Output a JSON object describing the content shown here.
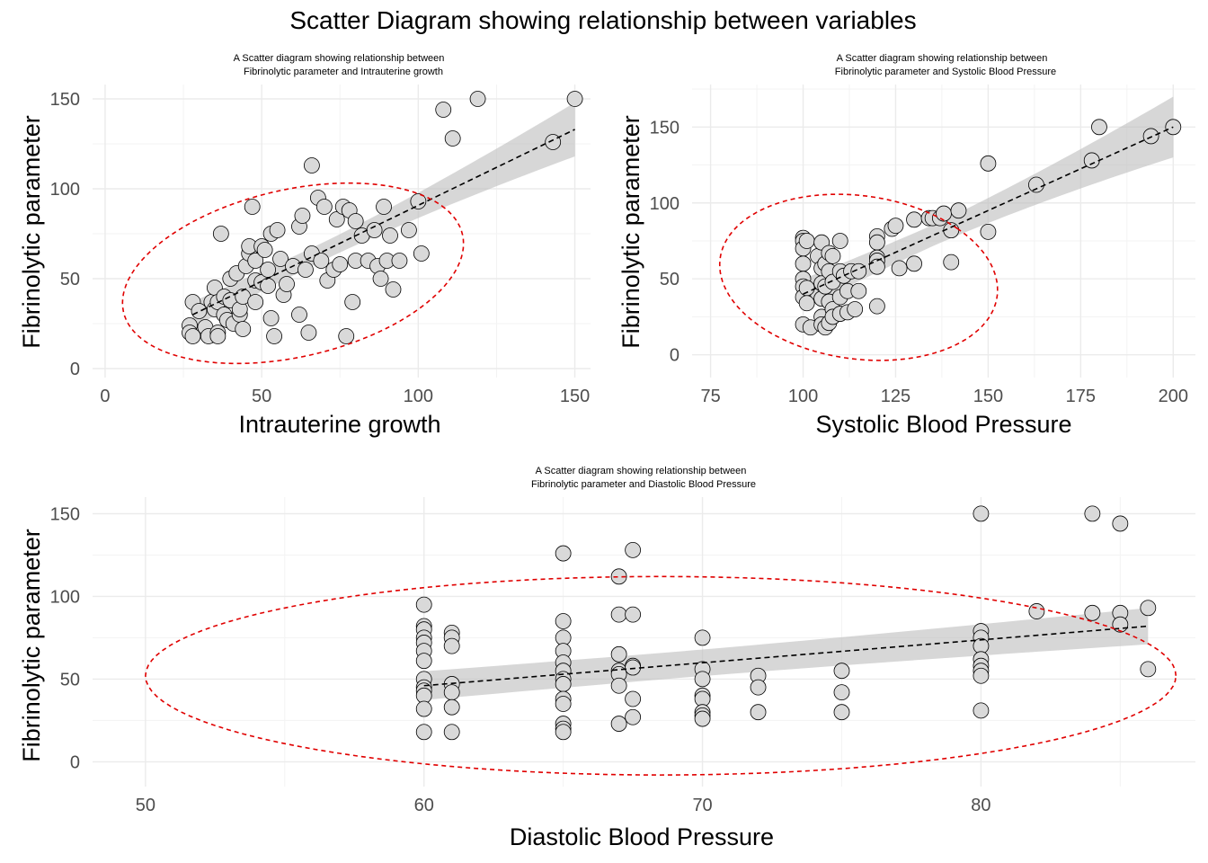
{
  "figure": {
    "title": "Scatter Diagram showing relationship between variables"
  },
  "chart_data": [
    {
      "type": "scatter",
      "title_line1": "A Scatter diagram showing relationship between",
      "title_line2": "Fibrinolytic parameter and Intrauterine growth",
      "xlabel": "Intrauterine growth",
      "ylabel": "Fibrinolytic parameter",
      "xlim": [
        -4,
        155
      ],
      "ylim": [
        -5,
        158
      ],
      "xticks": [
        0,
        50,
        100,
        150
      ],
      "yticks": [
        0,
        50,
        100,
        150
      ],
      "grid": true,
      "fit": {
        "x": [
          28,
          150
        ],
        "y": [
          30,
          133
        ],
        "ci_half_width": [
          5,
          15
        ]
      },
      "ellipse": {
        "cx": 60,
        "cy": 53,
        "rx": 60,
        "ry": 43,
        "angle_deg": 36
      },
      "points": [
        [
          28,
          37
        ],
        [
          27,
          24
        ],
        [
          27,
          20
        ],
        [
          28,
          18
        ],
        [
          30,
          32
        ],
        [
          32,
          23
        ],
        [
          33,
          18
        ],
        [
          34,
          37
        ],
        [
          35,
          33
        ],
        [
          35,
          45
        ],
        [
          36,
          20
        ],
        [
          36,
          18
        ],
        [
          37,
          75
        ],
        [
          36,
          37
        ],
        [
          38,
          30
        ],
        [
          38,
          40
        ],
        [
          39,
          27
        ],
        [
          40,
          38
        ],
        [
          40,
          50
        ],
        [
          41,
          25
        ],
        [
          42,
          53
        ],
        [
          43,
          30
        ],
        [
          43,
          33
        ],
        [
          44,
          22
        ],
        [
          44,
          40
        ],
        [
          45,
          57
        ],
        [
          46,
          64
        ],
        [
          46,
          68
        ],
        [
          47,
          90
        ],
        [
          48,
          60
        ],
        [
          48,
          49
        ],
        [
          48,
          37
        ],
        [
          50,
          68
        ],
        [
          50,
          48
        ],
        [
          51,
          66
        ],
        [
          52,
          55
        ],
        [
          52,
          46
        ],
        [
          53,
          28
        ],
        [
          53,
          75
        ],
        [
          54,
          18
        ],
        [
          55,
          77
        ],
        [
          56,
          61
        ],
        [
          57,
          41
        ],
        [
          58,
          47
        ],
        [
          60,
          57
        ],
        [
          62,
          30
        ],
        [
          62,
          79
        ],
        [
          63,
          85
        ],
        [
          64,
          55
        ],
        [
          65,
          20
        ],
        [
          66,
          64
        ],
        [
          66,
          113
        ],
        [
          68,
          95
        ],
        [
          69,
          60
        ],
        [
          70,
          90
        ],
        [
          71,
          49
        ],
        [
          73,
          55
        ],
        [
          74,
          83
        ],
        [
          75,
          58
        ],
        [
          76,
          90
        ],
        [
          77,
          18
        ],
        [
          78,
          88
        ],
        [
          79,
          37
        ],
        [
          80,
          60
        ],
        [
          80,
          82
        ],
        [
          82,
          74
        ],
        [
          84,
          60
        ],
        [
          86,
          77
        ],
        [
          87,
          57
        ],
        [
          88,
          50
        ],
        [
          89,
          90
        ],
        [
          90,
          60
        ],
        [
          91,
          74
        ],
        [
          92,
          44
        ],
        [
          94,
          60
        ],
        [
          97,
          77
        ],
        [
          100,
          93
        ],
        [
          101,
          64
        ],
        [
          108,
          144
        ],
        [
          111,
          128
        ],
        [
          119,
          150
        ],
        [
          143,
          126
        ],
        [
          150,
          150
        ]
      ]
    },
    {
      "type": "scatter",
      "title_line1": "A Scatter diagram showing relationship between",
      "title_line2": "Fibrinolytic parameter and Systolic Blood Pressure",
      "xlabel": "Systolic Blood Pressure",
      "ylabel": "Fibrinolytic parameter",
      "xlim": [
        70,
        206
      ],
      "ylim": [
        -15,
        178
      ],
      "xticks": [
        75,
        100,
        125,
        150,
        175,
        200
      ],
      "yticks": [
        0,
        50,
        100,
        150
      ],
      "grid": true,
      "fit": {
        "x": [
          100,
          200
        ],
        "y": [
          40,
          150
        ],
        "ci_half_width": [
          7,
          20
        ]
      },
      "ellipse": {
        "cx": 115,
        "cy": 51,
        "rx": 35,
        "ry": 58,
        "angle_deg": 40
      },
      "points": [
        [
          100,
          77
        ],
        [
          100,
          75
        ],
        [
          100,
          70
        ],
        [
          100,
          60
        ],
        [
          100,
          50
        ],
        [
          100,
          45
        ],
        [
          100,
          38
        ],
        [
          100,
          20
        ],
        [
          101,
          75
        ],
        [
          101,
          44
        ],
        [
          101,
          34
        ],
        [
          102,
          18
        ],
        [
          104,
          65
        ],
        [
          105,
          74
        ],
        [
          105,
          57
        ],
        [
          105,
          47
        ],
        [
          105,
          37
        ],
        [
          105,
          25
        ],
        [
          105,
          20
        ],
        [
          106,
          60
        ],
        [
          106,
          45
        ],
        [
          106,
          18
        ],
        [
          107,
          67
        ],
        [
          107,
          55
        ],
        [
          107,
          35
        ],
        [
          107,
          21
        ],
        [
          108,
          65
        ],
        [
          108,
          48
        ],
        [
          108,
          30
        ],
        [
          108,
          25
        ],
        [
          110,
          75
        ],
        [
          110,
          55
        ],
        [
          110,
          38
        ],
        [
          110,
          27
        ],
        [
          111,
          52
        ],
        [
          112,
          42
        ],
        [
          112,
          28
        ],
        [
          113,
          55
        ],
        [
          114,
          30
        ],
        [
          115,
          42
        ],
        [
          115,
          55
        ],
        [
          120,
          78
        ],
        [
          120,
          74
        ],
        [
          120,
          64
        ],
        [
          120,
          62
        ],
        [
          120,
          58
        ],
        [
          120,
          32
        ],
        [
          124,
          83
        ],
        [
          125,
          85
        ],
        [
          126,
          57
        ],
        [
          130,
          89
        ],
        [
          130,
          60
        ],
        [
          134,
          90
        ],
        [
          135,
          90
        ],
        [
          137,
          90
        ],
        [
          138,
          93
        ],
        [
          140,
          82
        ],
        [
          140,
          61
        ],
        [
          142,
          95
        ],
        [
          150,
          126
        ],
        [
          150,
          81
        ],
        [
          163,
          112
        ],
        [
          178,
          128
        ],
        [
          180,
          150
        ],
        [
          194,
          144
        ],
        [
          200,
          150
        ]
      ]
    },
    {
      "type": "scatter",
      "title_line1": "A Scatter diagram showing relationship between",
      "title_line2": "Fibrinolytic parameter and Diastolic Blood Pressure",
      "xlabel": "Diastolic Blood Pressure",
      "ylabel": "Fibrinolytic parameter",
      "xlim": [
        48.1,
        87.7
      ],
      "ylim": [
        -15,
        160
      ],
      "xticks": [
        50,
        60,
        70,
        80
      ],
      "yticks": [
        0,
        50,
        100,
        150
      ],
      "grid": true,
      "fit": {
        "x": [
          60,
          86
        ],
        "y": [
          46,
          82
        ],
        "ci_half_width": [
          8,
          11
        ]
      },
      "ellipse": {
        "cx": 68.5,
        "cy": 52,
        "rx": 18.5,
        "ry": 60,
        "angle_deg": 0
      },
      "points": [
        [
          60,
          95
        ],
        [
          60,
          82
        ],
        [
          60,
          80
        ],
        [
          60,
          75
        ],
        [
          60,
          72
        ],
        [
          60,
          67
        ],
        [
          60,
          61
        ],
        [
          60,
          50
        ],
        [
          60,
          45
        ],
        [
          60,
          43
        ],
        [
          60,
          40
        ],
        [
          60,
          32
        ],
        [
          60,
          18
        ],
        [
          61,
          78
        ],
        [
          61,
          75
        ],
        [
          61,
          70
        ],
        [
          61,
          47
        ],
        [
          61,
          42
        ],
        [
          61,
          33
        ],
        [
          61,
          18
        ],
        [
          65,
          126
        ],
        [
          65,
          85
        ],
        [
          65,
          75
        ],
        [
          65,
          67
        ],
        [
          65,
          60
        ],
        [
          65,
          55
        ],
        [
          65,
          50
        ],
        [
          65,
          47
        ],
        [
          65,
          38
        ],
        [
          65,
          35
        ],
        [
          65,
          23
        ],
        [
          65,
          20
        ],
        [
          65,
          18
        ],
        [
          67,
          112
        ],
        [
          67,
          89
        ],
        [
          67,
          65
        ],
        [
          67,
          55
        ],
        [
          67,
          53
        ],
        [
          67,
          46
        ],
        [
          67,
          23
        ],
        [
          67.5,
          128
        ],
        [
          67.5,
          89
        ],
        [
          67.5,
          58
        ],
        [
          67.5,
          57
        ],
        [
          67.5,
          38
        ],
        [
          67.5,
          27
        ],
        [
          70,
          75
        ],
        [
          70,
          56
        ],
        [
          70,
          50
        ],
        [
          70,
          40
        ],
        [
          70,
          38
        ],
        [
          70,
          30
        ],
        [
          70,
          28
        ],
        [
          70,
          26
        ],
        [
          72,
          52
        ],
        [
          72,
          45
        ],
        [
          72,
          30
        ],
        [
          75,
          55
        ],
        [
          75,
          42
        ],
        [
          75,
          30
        ],
        [
          80,
          150
        ],
        [
          80,
          79
        ],
        [
          80,
          75
        ],
        [
          80,
          70
        ],
        [
          80,
          62
        ],
        [
          80,
          58
        ],
        [
          80,
          55
        ],
        [
          80,
          52
        ],
        [
          80,
          31
        ],
        [
          82,
          91
        ],
        [
          84,
          150
        ],
        [
          84,
          90
        ],
        [
          85,
          144
        ],
        [
          85,
          90
        ],
        [
          85,
          83
        ],
        [
          86,
          93
        ],
        [
          86,
          56
        ]
      ]
    }
  ]
}
